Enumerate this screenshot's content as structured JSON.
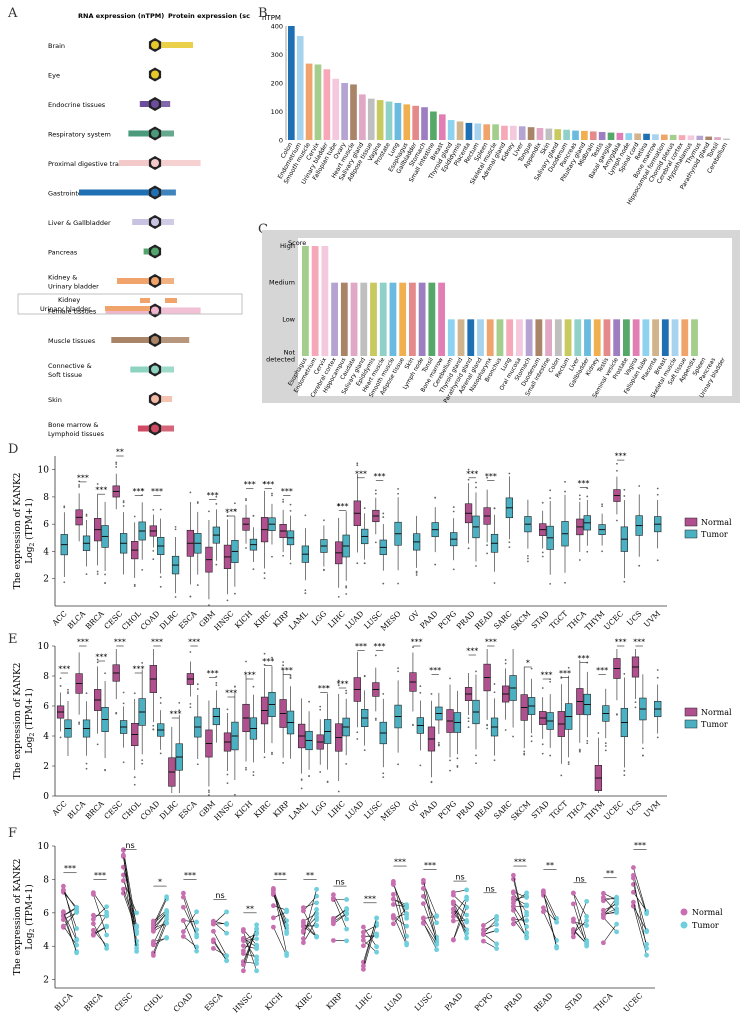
{
  "panel_labels": {
    "a": "A",
    "b": "B",
    "c": "C",
    "d": "D",
    "e": "E",
    "f": "F"
  },
  "panel_a": {
    "header_rna": "RNA expression (nTPM)",
    "header_protein": "Protein expression (score)",
    "tissues": [
      {
        "name": "Brain",
        "rna": 0,
        "protein": 2,
        "color": "#e8c92a"
      },
      {
        "name": "Eye",
        "rna": 0,
        "protein": 0.3,
        "color": "#e8c92a"
      },
      {
        "name": "Endocrine tissues",
        "rna": 0.8,
        "protein": 0.8,
        "color": "#6b4d9c"
      },
      {
        "name": "Respiratory system",
        "rna": 1.4,
        "protein": 1,
        "color": "#4a9a7b"
      },
      {
        "name": "Proximal digestive tract",
        "rna": 1.9,
        "protein": 2.4,
        "color": "#f4c9c9"
      },
      {
        "name": "Gastrointestinal tract",
        "rna": 4,
        "protein": 1.1,
        "color": "#1f6fb3"
      },
      {
        "name": "Liver & Gallbladder",
        "rna": 1.2,
        "protein": 1,
        "color": "#c8c3e3"
      },
      {
        "name": "Pancreas",
        "rna": 0.6,
        "protein": 0,
        "color": "#53a56d"
      },
      {
        "name": "Kidney & Urinary bladder",
        "rna": 2,
        "protein": 1,
        "color": "#f0a36b"
      },
      {
        "name": "Female tissues",
        "rna": 2.6,
        "protein": 2.4,
        "color": "#f0b5cc"
      },
      {
        "name": "Muscle tissues",
        "rna": 2.3,
        "protein": 1.8,
        "color": "#a98466"
      },
      {
        "name": "Connective & Soft tissue",
        "rna": 1.3,
        "protein": 1,
        "color": "#8dd3c0"
      },
      {
        "name": "Skin",
        "rna": 0.3,
        "protein": 0.9,
        "color": "#f3b8a4"
      },
      {
        "name": "Bone marrow & Lymphoid tissues",
        "rna": 0.9,
        "protein": 1,
        "color": "#d04a63"
      }
    ],
    "sub_kidney": "Kidney",
    "sub_bladder": "Urinary bladder"
  },
  "chart_data": [
    {
      "type": "bar",
      "id": "B",
      "title": "",
      "ylabel": "nTPM",
      "ylim": [
        0,
        400
      ],
      "yticks": [
        0,
        100,
        200,
        300,
        400
      ],
      "categories": [
        "Colon",
        "Endometrium",
        "Smooth muscle",
        "Cervix",
        "Urinary bladder",
        "Fallopian tube",
        "Ovary",
        "Heart muscle",
        "Salivary gland",
        "Adipose tissue",
        "Vagina",
        "Prostate",
        "Lung",
        "Esophagus",
        "Gallbladder",
        "Stomach",
        "Small intestine",
        "Breast",
        "Thyroid gland",
        "Epididymis",
        "Placenta",
        "Rectum",
        "Spleen",
        "Skeletal muscle",
        "Adrenal gland",
        "Kidney",
        "Liver",
        "Tongue",
        "Appendix",
        "Skin",
        "Salivary gland",
        "Duodenum",
        "Pancreas",
        "Pituitary gland",
        "Midbrain",
        "Testis",
        "Basal ganglia",
        "Amygdala",
        "Lymph node",
        "Spinal cord",
        "Retina",
        "Bone marrow",
        "Hippocampal formation",
        "Choroid plexus",
        "Cerebral cortex",
        "Hypothalamus",
        "Thymus",
        "Parathyroid gland",
        "Tonsil",
        "Cerebellum"
      ],
      "values": [
        400,
        365,
        268,
        265,
        248,
        215,
        200,
        195,
        160,
        145,
        140,
        135,
        130,
        125,
        120,
        115,
        100,
        90,
        70,
        65,
        60,
        58,
        55,
        55,
        50,
        50,
        48,
        45,
        42,
        40,
        38,
        36,
        33,
        32,
        30,
        28,
        26,
        25,
        24,
        23,
        22,
        20,
        19,
        18,
        17,
        16,
        15,
        12,
        10,
        5
      ]
    },
    {
      "type": "bar",
      "id": "C",
      "ylabel": "Score",
      "levels": [
        "Not detected",
        "Low",
        "Medium",
        "High"
      ],
      "categories": [
        "Esophagus",
        "Endometrium",
        "Cervix",
        "Cerebral cortex",
        "Hippocampus",
        "Caudate",
        "Salivary gland",
        "Epididymis",
        "Heart muscle",
        "Smooth muscle",
        "Adipose tissue",
        "Skin",
        "Lymph node",
        "Tonsil",
        "Bone marrow",
        "Cerebellum",
        "Thyroid gland",
        "Parathyroid gland",
        "Adrenal gland",
        "Nasopharynx",
        "Bronchus",
        "Lung",
        "Oral mucosa",
        "Stomach",
        "Duodenum",
        "Small intestine",
        "Colon",
        "Rectum",
        "Liver",
        "Gallbladder",
        "Kidney",
        "Testis",
        "Seminal vesicle",
        "Prostate",
        "Vagina",
        "Fallopian tube",
        "Placenta",
        "Breast",
        "Skeletal muscle",
        "Soft tissue",
        "Appendix",
        "Spleen",
        "Pancreas",
        "Urinary bladder"
      ],
      "values": [
        3,
        3,
        3,
        2,
        2,
        2,
        2,
        2,
        2,
        2,
        2,
        2,
        2,
        2,
        2,
        1,
        1,
        1,
        1,
        1,
        1,
        1,
        1,
        1,
        1,
        1,
        1,
        1,
        1,
        1,
        1,
        1,
        1,
        1,
        1,
        1,
        1,
        1,
        1,
        1,
        1,
        0,
        0,
        0
      ]
    },
    {
      "type": "boxplot",
      "id": "D",
      "ylabel_line1": "The expression  of KANK2",
      "ylabel_line2": "Log",
      "ylabel_sub": "2",
      "ylabel_tail": " (TPM+1)",
      "ylim": [
        0,
        11
      ],
      "yticks": [
        2,
        4,
        6,
        8,
        10
      ],
      "legend": [
        "Normal",
        "Tumor"
      ],
      "groups": [
        {
          "cancer": "ACC",
          "normal": null,
          "tumor": 4.5,
          "sig": ""
        },
        {
          "cancer": "BLCA",
          "normal": 6.5,
          "tumor": 4.6,
          "sig": "***"
        },
        {
          "cancer": "BRCA",
          "normal": 5.6,
          "tumor": 5.1,
          "sig": "***"
        },
        {
          "cancer": "CESC",
          "normal": 8.4,
          "tumor": 4.6,
          "sig": "**"
        },
        {
          "cancer": "CHOL",
          "normal": 4.1,
          "tumor": 5.5,
          "sig": "***"
        },
        {
          "cancer": "COAD",
          "normal": 5.5,
          "tumor": 4.4,
          "sig": "***"
        },
        {
          "cancer": "DLBC",
          "normal": null,
          "tumor": 3.0,
          "sig": ""
        },
        {
          "cancer": "ESCA",
          "normal": 4.6,
          "tumor": 4.6,
          "sig": ""
        },
        {
          "cancer": "GBM",
          "normal": 3.4,
          "tumor": 5.2,
          "sig": "***"
        },
        {
          "cancer": "HNSC",
          "normal": 3.6,
          "tumor": 4.0,
          "sig": "***"
        },
        {
          "cancer": "KICH",
          "normal": 6.0,
          "tumor": 4.5,
          "sig": "***"
        },
        {
          "cancer": "KIRC",
          "normal": 5.6,
          "tumor": 6.0,
          "sig": "***"
        },
        {
          "cancer": "KIRP",
          "normal": 5.5,
          "tumor": 5.0,
          "sig": "***"
        },
        {
          "cancer": "LAML",
          "normal": null,
          "tumor": 3.8,
          "sig": ""
        },
        {
          "cancer": "LGG",
          "normal": null,
          "tumor": 4.4,
          "sig": ""
        },
        {
          "cancer": "LIHC",
          "normal": 3.9,
          "tumor": 4.4,
          "sig": "***"
        },
        {
          "cancer": "LUAD",
          "normal": 6.8,
          "tumor": 5.1,
          "sig": "***"
        },
        {
          "cancer": "LUSC",
          "normal": 6.6,
          "tumor": 4.3,
          "sig": "***"
        },
        {
          "cancer": "MESO",
          "normal": null,
          "tumor": 5.3,
          "sig": ""
        },
        {
          "cancer": "OV",
          "normal": null,
          "tumor": 4.7,
          "sig": ""
        },
        {
          "cancer": "PAAD",
          "normal": null,
          "tumor": 5.6,
          "sig": ""
        },
        {
          "cancer": "PCPG",
          "normal": null,
          "tumor": 4.9,
          "sig": ""
        },
        {
          "cancer": "PRAD",
          "normal": 6.8,
          "tumor": 5.8,
          "sig": "***"
        },
        {
          "cancer": "READ",
          "normal": 6.6,
          "tumor": 4.6,
          "sig": "***"
        },
        {
          "cancer": "SARC",
          "normal": null,
          "tumor": 7.2,
          "sig": ""
        },
        {
          "cancer": "SKCM",
          "normal": null,
          "tumor": 6.0,
          "sig": ""
        },
        {
          "cancer": "STAD",
          "normal": 5.6,
          "tumor": 5.0,
          "sig": ""
        },
        {
          "cancer": "TGCT",
          "normal": null,
          "tumor": 5.3,
          "sig": ""
        },
        {
          "cancer": "THCA",
          "normal": 5.8,
          "tumor": 6.1,
          "sig": "***"
        },
        {
          "cancer": "THYM",
          "normal": null,
          "tumor": 5.6,
          "sig": ""
        },
        {
          "cancer": "UCEC",
          "normal": 8.1,
          "tumor": 4.9,
          "sig": "***"
        },
        {
          "cancer": "UCS",
          "normal": null,
          "tumor": 5.9,
          "sig": ""
        },
        {
          "cancer": "UVM",
          "normal": null,
          "tumor": 6.0,
          "sig": ""
        }
      ]
    },
    {
      "type": "boxplot",
      "id": "E",
      "ylabel_line1": "The expression  of KANK2",
      "ylabel_line2": "Log",
      "ylabel_sub": "2",
      "ylabel_tail": " (TPM+1)",
      "ylim": [
        0,
        10
      ],
      "yticks": [
        0,
        2,
        4,
        6,
        8,
        10
      ],
      "legend": [
        "Normal",
        "Tumor"
      ],
      "groups": [
        {
          "cancer": "ACC",
          "normal": 5.6,
          "tumor": 4.5,
          "sig": "***"
        },
        {
          "cancer": "BLCA",
          "normal": 7.5,
          "tumor": 4.5,
          "sig": "***"
        },
        {
          "cancer": "BRCA",
          "normal": 6.4,
          "tumor": 5.1,
          "sig": "***"
        },
        {
          "cancer": "CESC",
          "normal": 8.2,
          "tumor": 4.6,
          "sig": "***"
        },
        {
          "cancer": "CHOL",
          "normal": 4.1,
          "tumor": 5.6,
          "sig": "***"
        },
        {
          "cancer": "COAD",
          "normal": 7.8,
          "tumor": 4.4,
          "sig": "***"
        },
        {
          "cancer": "DLBC",
          "normal": 1.6,
          "tumor": 2.6,
          "sig": "***"
        },
        {
          "cancer": "ESCA",
          "normal": 7.8,
          "tumor": 4.6,
          "sig": "***"
        },
        {
          "cancer": "GBM",
          "normal": 3.5,
          "tumor": 5.3,
          "sig": "***"
        },
        {
          "cancer": "HNSC",
          "normal": 3.6,
          "tumor": 4.0,
          "sig": "***"
        },
        {
          "cancer": "KICH",
          "normal": 5.2,
          "tumor": 4.5,
          "sig": "***"
        },
        {
          "cancer": "KIRC",
          "normal": 5.7,
          "tumor": 6.1,
          "sig": "***"
        },
        {
          "cancer": "KIRP",
          "normal": 5.5,
          "tumor": 4.9,
          "sig": "***"
        },
        {
          "cancer": "LAML",
          "normal": 4.0,
          "tumor": 3.7,
          "sig": ""
        },
        {
          "cancer": "LGG",
          "normal": 3.6,
          "tumor": 4.3,
          "sig": "***"
        },
        {
          "cancer": "LIHC",
          "normal": 3.9,
          "tumor": 4.6,
          "sig": "***"
        },
        {
          "cancer": "LUAD",
          "normal": 7.1,
          "tumor": 5.2,
          "sig": "***"
        },
        {
          "cancer": "LUSC",
          "normal": 7.1,
          "tumor": 4.2,
          "sig": "***"
        },
        {
          "cancer": "MESO",
          "normal": null,
          "tumor": 5.3,
          "sig": ""
        },
        {
          "cancer": "OV",
          "normal": 7.6,
          "tumor": 4.7,
          "sig": "***"
        },
        {
          "cancer": "PAAD",
          "normal": 3.8,
          "tumor": 5.5,
          "sig": "***"
        },
        {
          "cancer": "PCPG",
          "normal": 5.0,
          "tumor": 4.9,
          "sig": ""
        },
        {
          "cancer": "PRAD",
          "normal": 6.8,
          "tumor": 5.6,
          "sig": "***"
        },
        {
          "cancer": "READ",
          "normal": 7.9,
          "tumor": 4.6,
          "sig": "***"
        },
        {
          "cancer": "SARC",
          "normal": 6.8,
          "tumor": 7.2,
          "sig": ""
        },
        {
          "cancer": "SKCM",
          "normal": 5.9,
          "tumor": 6.0,
          "sig": "*"
        },
        {
          "cancer": "STAD",
          "normal": 5.2,
          "tumor": 5.0,
          "sig": "***"
        },
        {
          "cancer": "TGCT",
          "normal": 4.8,
          "tumor": 5.3,
          "sig": "***"
        },
        {
          "cancer": "THCA",
          "normal": 6.3,
          "tumor": 6.1,
          "sig": "***"
        },
        {
          "cancer": "THYM",
          "normal": 1.2,
          "tumor": 5.5,
          "sig": "***"
        },
        {
          "cancer": "UCEC",
          "normal": 8.5,
          "tumor": 4.9,
          "sig": "***"
        },
        {
          "cancer": "UCS",
          "normal": 8.6,
          "tumor": 5.8,
          "sig": "***"
        },
        {
          "cancer": "UVM",
          "normal": null,
          "tumor": 5.8,
          "sig": ""
        }
      ]
    },
    {
      "type": "paired-scatter",
      "id": "F",
      "ylabel_line1": "The expression  of KANK2",
      "ylabel_line2": "Log",
      "ylabel_sub": "2",
      "ylabel_tail": " (TPM+1)",
      "ylim": [
        1.5,
        10
      ],
      "yticks": [
        2,
        4,
        6,
        8,
        10
      ],
      "legend": [
        "Normal",
        "Tumor"
      ],
      "groups": [
        {
          "cancer": "BLCA",
          "normal": 6.4,
          "tumor": 5.0,
          "sig": "***"
        },
        {
          "cancer": "BRCA",
          "normal": 6.0,
          "tumor": 5.0,
          "sig": "***"
        },
        {
          "cancer": "CESC",
          "normal": 8.5,
          "tumor": 4.5,
          "sig": "ns"
        },
        {
          "cancer": "CHOL",
          "normal": 4.2,
          "tumor": 5.6,
          "sig": "*"
        },
        {
          "cancer": "COAD",
          "normal": 6.0,
          "tumor": 4.6,
          "sig": "***"
        },
        {
          "cancer": "ESCA",
          "normal": 4.8,
          "tumor": 4.6,
          "sig": "ns"
        },
        {
          "cancer": "HNSC",
          "normal": 3.6,
          "tumor": 4.0,
          "sig": "**"
        },
        {
          "cancer": "KICH",
          "normal": 6.0,
          "tumor": 4.9,
          "sig": "***"
        },
        {
          "cancer": "KIRC",
          "normal": 5.5,
          "tumor": 6.0,
          "sig": "**"
        },
        {
          "cancer": "KIRP",
          "normal": 5.6,
          "tumor": 5.5,
          "sig": "ns"
        },
        {
          "cancer": "LIHC",
          "normal": 3.9,
          "tumor": 4.6,
          "sig": "***"
        },
        {
          "cancer": "LUAD",
          "normal": 6.8,
          "tumor": 5.3,
          "sig": "***"
        },
        {
          "cancer": "LUSC",
          "normal": 6.6,
          "tumor": 4.8,
          "sig": "***"
        },
        {
          "cancer": "PAAD",
          "normal": 5.8,
          "tumor": 5.9,
          "sig": "ns"
        },
        {
          "cancer": "PCPG",
          "normal": 5.0,
          "tumor": 5.2,
          "sig": "ns"
        },
        {
          "cancer": "PRAD",
          "normal": 6.8,
          "tumor": 5.8,
          "sig": "***"
        },
        {
          "cancer": "READ",
          "normal": 6.6,
          "tumor": 4.8,
          "sig": "**"
        },
        {
          "cancer": "STAD",
          "normal": 5.8,
          "tumor": 5.2,
          "sig": "ns"
        },
        {
          "cancer": "THCA",
          "normal": 5.7,
          "tumor": 6.1,
          "sig": "**"
        },
        {
          "cancer": "UCEC",
          "normal": 7.8,
          "tumor": 4.8,
          "sig": "***"
        }
      ]
    }
  ],
  "colors": {
    "normal_fill": "#b0508e",
    "normal_point": "#c86fb1",
    "tumor_fill": "#4ab0c2",
    "tumor_point": "#6fcfdd",
    "panel_c_bg": "#d6d6d6",
    "palette": [
      "#1f6fb3",
      "#a7d3ef",
      "#f0a36b",
      "#a4ce8c",
      "#f7a8b8",
      "#f4c9dd",
      "#b5a3d2",
      "#a98466",
      "#e1a8c6",
      "#bfbfbf",
      "#c8c95e",
      "#8fd1c9",
      "#6bbae0",
      "#f0b050",
      "#e58a8a",
      "#9c7ec1",
      "#55a868",
      "#e17fb4",
      "#8dd3f0",
      "#d2b48c"
    ]
  }
}
